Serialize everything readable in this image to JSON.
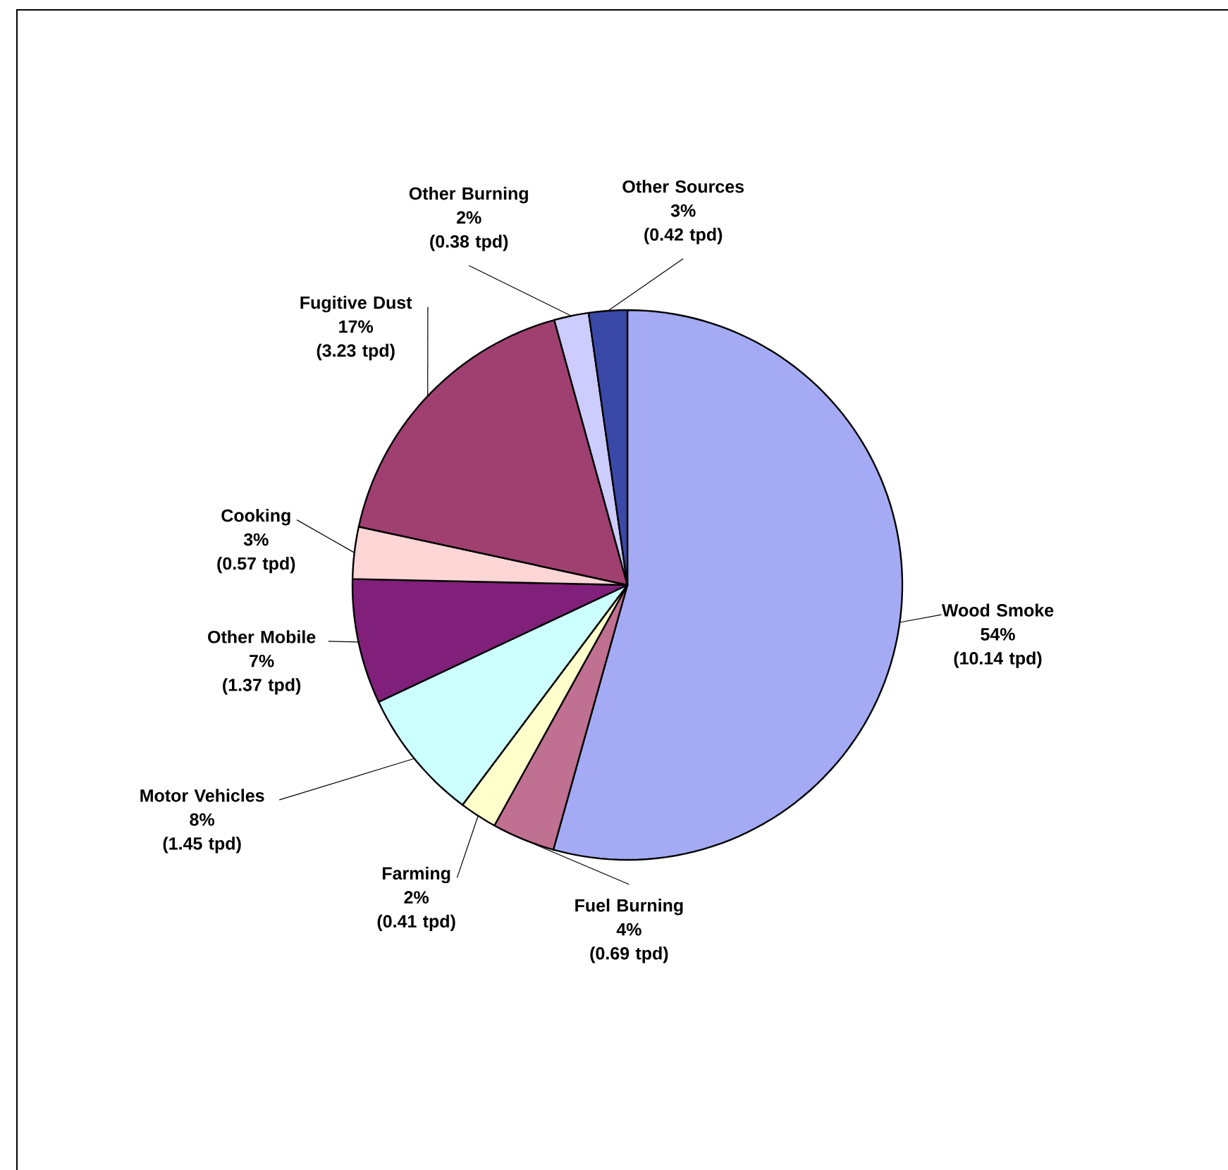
{
  "chart_data": {
    "type": "pie",
    "categories": [
      "Wood Smoke",
      "Fuel Burning",
      "Farming",
      "Motor Vehicles",
      "Other Mobile",
      "Cooking",
      "Fugitive Dust",
      "Other Burning",
      "Other Sources"
    ],
    "values": [
      10.14,
      0.69,
      0.41,
      1.45,
      1.37,
      0.57,
      3.23,
      0.38,
      0.42
    ],
    "value_labels": [
      "54%\n(10.14 tpd)",
      "4%\n(0.69 tpd)",
      "2%\n(0.41 tpd)",
      "8%\n(1.45 tpd)",
      "7%\n(1.37 tpd)",
      "3%\n(0.57 tpd)",
      "17%\n(3.23 tpd)",
      "2%\n(0.38 tpd)",
      "3%\n(0.42 tpd)"
    ],
    "colors": [
      "#a4abf4",
      "#c07090",
      "#ffffcc",
      "#ccffff",
      "#80207a",
      "#ffd6d6",
      "#a04070",
      "#ccccff",
      "#3a48a8"
    ]
  }
}
